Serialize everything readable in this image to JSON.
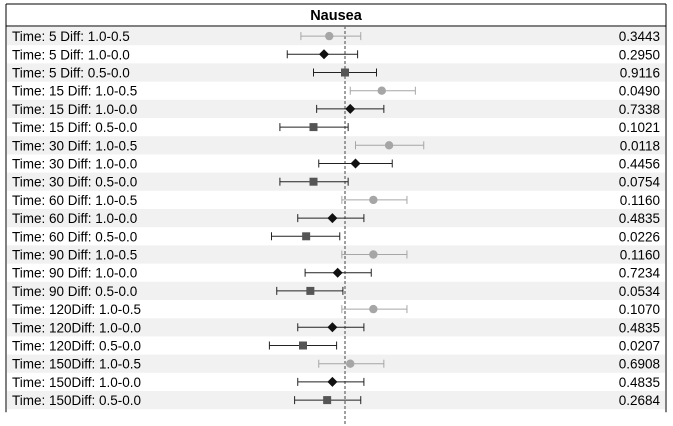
{
  "chart_data": {
    "type": "forest",
    "title": "Nausea",
    "xlabel": "",
    "ylabel": "",
    "reference_line": 0,
    "xlim": [
      -1,
      1
    ],
    "marker_legend": {
      "Diff: 1.0-0.5": {
        "shape": "circle",
        "color": "#a6a6a6"
      },
      "Diff: 1.0-0.0": {
        "shape": "diamond",
        "color": "#111111"
      },
      "Diff: 0.5-0.0": {
        "shape": "square",
        "color": "#555555"
      }
    },
    "rows": [
      {
        "label": "Time: 5  Diff: 1.0-0.5",
        "marker": "circle",
        "estimate": -0.15,
        "lower": -0.42,
        "upper": 0.15,
        "p_value": "0.3443"
      },
      {
        "label": "Time: 5  Diff: 1.0-0.0",
        "marker": "diamond",
        "estimate": -0.2,
        "lower": -0.55,
        "upper": 0.12,
        "p_value": "0.2950"
      },
      {
        "label": "Time: 5  Diff: 0.5-0.0",
        "marker": "square",
        "estimate": 0.0,
        "lower": -0.3,
        "upper": 0.3,
        "p_value": "0.9116"
      },
      {
        "label": "Time: 15 Diff: 1.0-0.5",
        "marker": "circle",
        "estimate": 0.35,
        "lower": 0.05,
        "upper": 0.67,
        "p_value": "0.0490"
      },
      {
        "label": "Time: 15 Diff: 1.0-0.0",
        "marker": "diamond",
        "estimate": 0.05,
        "lower": -0.27,
        "upper": 0.37,
        "p_value": "0.7338"
      },
      {
        "label": "Time: 15 Diff: 0.5-0.0",
        "marker": "square",
        "estimate": -0.3,
        "lower": -0.62,
        "upper": 0.03,
        "p_value": "0.1021"
      },
      {
        "label": "Time: 30 Diff: 1.0-0.5",
        "marker": "circle",
        "estimate": 0.42,
        "lower": 0.1,
        "upper": 0.75,
        "p_value": "0.0118"
      },
      {
        "label": "Time: 30 Diff: 1.0-0.0",
        "marker": "diamond",
        "estimate": 0.1,
        "lower": -0.25,
        "upper": 0.45,
        "p_value": "0.4456"
      },
      {
        "label": "Time: 30 Diff: 0.5-0.0",
        "marker": "square",
        "estimate": -0.3,
        "lower": -0.62,
        "upper": 0.03,
        "p_value": "0.0754"
      },
      {
        "label": "Time: 60 Diff: 1.0-0.5",
        "marker": "circle",
        "estimate": 0.27,
        "lower": -0.03,
        "upper": 0.59,
        "p_value": "0.1160"
      },
      {
        "label": "Time: 60 Diff: 1.0-0.0",
        "marker": "diamond",
        "estimate": -0.12,
        "lower": -0.45,
        "upper": 0.18,
        "p_value": "0.4835"
      },
      {
        "label": "Time: 60 Diff: 0.5-0.0",
        "marker": "square",
        "estimate": -0.37,
        "lower": -0.7,
        "upper": -0.05,
        "p_value": "0.0226"
      },
      {
        "label": "Time: 90 Diff: 1.0-0.5",
        "marker": "circle",
        "estimate": 0.27,
        "lower": -0.03,
        "upper": 0.59,
        "p_value": "0.1160"
      },
      {
        "label": "Time: 90 Diff: 1.0-0.0",
        "marker": "diamond",
        "estimate": -0.07,
        "lower": -0.38,
        "upper": 0.25,
        "p_value": "0.7234"
      },
      {
        "label": "Time: 90 Diff: 0.5-0.0",
        "marker": "square",
        "estimate": -0.33,
        "lower": -0.65,
        "upper": -0.02,
        "p_value": "0.0534"
      },
      {
        "label": "Time: 120Diff: 1.0-0.5",
        "marker": "circle",
        "estimate": 0.27,
        "lower": -0.03,
        "upper": 0.59,
        "p_value": "0.1070"
      },
      {
        "label": "Time: 120Diff: 1.0-0.0",
        "marker": "diamond",
        "estimate": -0.12,
        "lower": -0.45,
        "upper": 0.18,
        "p_value": "0.4835"
      },
      {
        "label": "Time: 120Diff: 0.5-0.0",
        "marker": "square",
        "estimate": -0.4,
        "lower": -0.72,
        "upper": -0.08,
        "p_value": "0.0207"
      },
      {
        "label": "Time: 150Diff: 1.0-0.5",
        "marker": "circle",
        "estimate": 0.05,
        "lower": -0.25,
        "upper": 0.37,
        "p_value": "0.6908"
      },
      {
        "label": "Time: 150Diff: 1.0-0.0",
        "marker": "diamond",
        "estimate": -0.12,
        "lower": -0.45,
        "upper": 0.18,
        "p_value": "0.4835"
      },
      {
        "label": "Time: 150Diff: 0.5-0.0",
        "marker": "square",
        "estimate": -0.17,
        "lower": -0.48,
        "upper": 0.15,
        "p_value": "0.2684"
      }
    ],
    "grid": false,
    "legend": "none"
  }
}
